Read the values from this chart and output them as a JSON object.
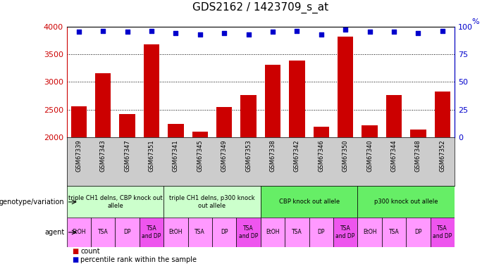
{
  "title": "GDS2162 / 1423709_s_at",
  "samples": [
    "GSM67339",
    "GSM67343",
    "GSM67347",
    "GSM67351",
    "GSM67341",
    "GSM67345",
    "GSM67349",
    "GSM67353",
    "GSM67338",
    "GSM67342",
    "GSM67346",
    "GSM67350",
    "GSM67340",
    "GSM67344",
    "GSM67348",
    "GSM67352"
  ],
  "counts": [
    2560,
    3150,
    2420,
    3680,
    2240,
    2100,
    2540,
    2760,
    3310,
    3390,
    2190,
    3820,
    2210,
    2760,
    2140,
    2820
  ],
  "percentile": [
    95,
    96,
    95,
    96,
    94,
    93,
    94,
    93,
    95,
    96,
    93,
    97,
    95,
    95,
    94,
    96
  ],
  "bar_color": "#cc0000",
  "dot_color": "#0000cc",
  "ylim_left": [
    2000,
    4000
  ],
  "ylim_right": [
    0,
    100
  ],
  "yticks_left": [
    2000,
    2500,
    3000,
    3500,
    4000
  ],
  "yticks_right": [
    0,
    25,
    50,
    75,
    100
  ],
  "genotype_groups": [
    {
      "label": "triple CH1 delns, CBP knock out\nallele",
      "start": 0,
      "end": 3,
      "color": "#ccffcc"
    },
    {
      "label": "triple CH1 delns, p300 knock\nout allele",
      "start": 4,
      "end": 7,
      "color": "#ccffcc"
    },
    {
      "label": "CBP knock out allele",
      "start": 8,
      "end": 11,
      "color": "#66ee66"
    },
    {
      "label": "p300 knock out allele",
      "start": 12,
      "end": 15,
      "color": "#66ee66"
    }
  ],
  "agent_labels": [
    "EtOH",
    "TSA",
    "DP",
    "TSA\nand DP",
    "EtOH",
    "TSA",
    "DP",
    "TSA\nand DP",
    "EtOH",
    "TSA",
    "DP",
    "TSA\nand DP",
    "EtOH",
    "TSA",
    "DP",
    "TSA\nand DP"
  ],
  "agent_colors": [
    "#ff99ff",
    "#ff99ff",
    "#ff99ff",
    "#ee55ee",
    "#ff99ff",
    "#ff99ff",
    "#ff99ff",
    "#ee55ee",
    "#ff99ff",
    "#ff99ff",
    "#ff99ff",
    "#ee55ee",
    "#ff99ff",
    "#ff99ff",
    "#ff99ff",
    "#ee55ee"
  ],
  "xlabel_color": "#cc0000",
  "right_axis_color": "#0000cc",
  "background_color": "#ffffff",
  "grid_color": "#000000",
  "bar_width": 0.65,
  "sample_bg_color": "#cccccc",
  "left_label_color": "#000000",
  "legend_square_size": 7
}
